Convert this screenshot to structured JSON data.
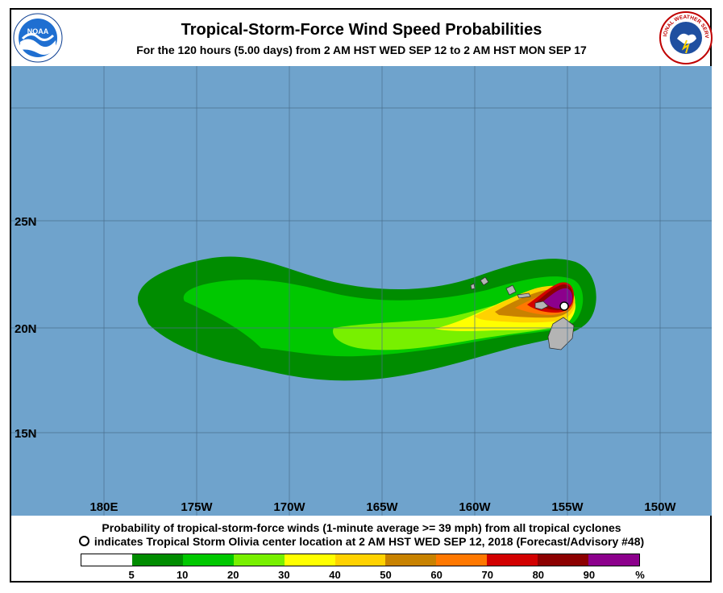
{
  "header": {
    "title": "Tropical-Storm-Force Wind Speed Probabilities",
    "subtitle": "For the 120 hours (5.00 days) from 2 AM HST WED SEP 12 to 2 AM HST MON SEP 17"
  },
  "logos": {
    "left": "NOAA",
    "right": "NATIONAL WEATHER SERVICE"
  },
  "map": {
    "ocean_color": "#6fa3cc",
    "grid_color": "#4a6f8c",
    "land_color": "#b4b4b4",
    "lat_labels": [
      "25N",
      "20N",
      "15N"
    ],
    "lon_labels": [
      "180E",
      "175W",
      "170W",
      "165W",
      "160W",
      "155W",
      "150W"
    ],
    "storm_center_label": "Tropical Storm Olivia"
  },
  "caption": {
    "line1": "Probability of tropical-storm-force winds (1-minute average >= 39 mph) from all tropical cyclones",
    "line2": "indicates Tropical Storm Olivia center location at 2 AM HST WED SEP 12, 2018 (Forecast/Advisory #48)"
  },
  "legend": {
    "colors": [
      "#ffffff",
      "#008c00",
      "#00c800",
      "#78f000",
      "#ffff00",
      "#ffd200",
      "#c88200",
      "#ff7800",
      "#d20000",
      "#8c0000",
      "#8c008c"
    ],
    "labels": [
      "5",
      "10",
      "20",
      "30",
      "40",
      "50",
      "60",
      "70",
      "80",
      "90",
      "%"
    ]
  }
}
